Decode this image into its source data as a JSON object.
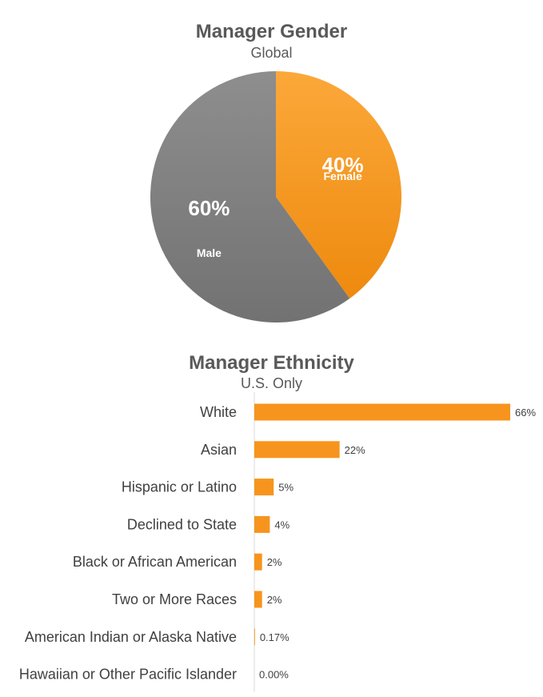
{
  "chart_data": [
    {
      "type": "pie",
      "title": "Manager Gender",
      "subtitle": "Global",
      "slices": [
        {
          "label": "Female",
          "value": 40,
          "value_label": "40%",
          "color": "#F7941D"
        },
        {
          "label": "Male",
          "value": 60,
          "value_label": "60%",
          "color": "#808080"
        }
      ]
    },
    {
      "type": "bar",
      "orientation": "horizontal",
      "title": "Manager Ethnicity",
      "subtitle": "U.S. Only",
      "categories": [
        "White",
        "Asian",
        "Hispanic or Latino",
        "Declined to State",
        "Black or African American",
        "Two or More Races",
        "American Indian or Alaska Native",
        "Hawaiian or Other Pacific Islander"
      ],
      "values": [
        66,
        22,
        5,
        4,
        2,
        2,
        0.17,
        0.0
      ],
      "value_labels": [
        "66%",
        "22%",
        "5%",
        "4%",
        "2%",
        "2%",
        "0.17%",
        "0.00%"
      ],
      "bar_color": "#F7941D",
      "xlim": [
        0,
        66
      ]
    }
  ]
}
